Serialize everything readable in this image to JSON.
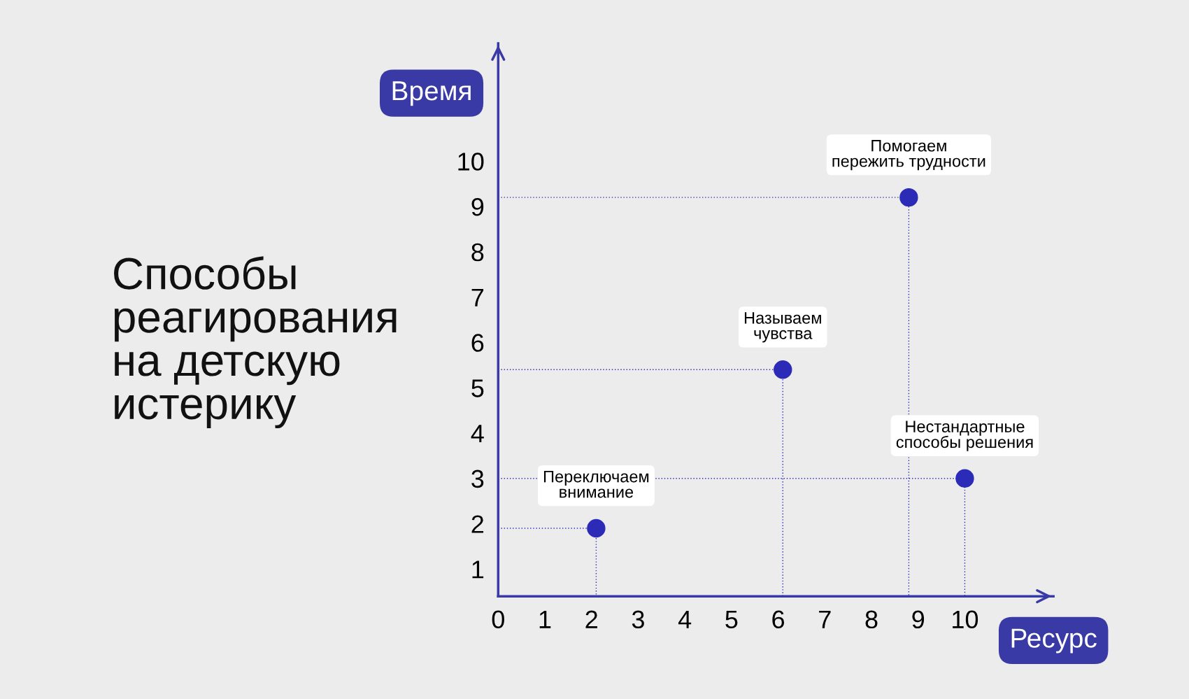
{
  "chart_data": {
    "type": "scatter",
    "title": "Способы\nреагирования\nна детскую\nистерику",
    "xlabel": "Ресурс",
    "ylabel": "Время",
    "x": [
      2.1,
      6.1,
      8.8,
      10
    ],
    "series": [
      {
        "color": "#2b2bb8",
        "marker": "circle",
        "values": [
          1.9,
          5.4,
          9.2,
          3.0
        ]
      },
      {
        "type": "line",
        "line_style": "dotted",
        "color": "#2b2bb8",
        "x": [
          0,
          2.1,
          2.1
        ],
        "values": [
          1.9,
          1.9,
          0.4
        ]
      },
      {
        "type": "line",
        "line_style": "dotted",
        "color": "#2b2bb8",
        "x": [
          0,
          6.1,
          6.1
        ],
        "values": [
          5.4,
          5.4,
          0.4
        ]
      },
      {
        "type": "line",
        "line_style": "dotted",
        "color": "#2b2bb8",
        "x": [
          0,
          8.8,
          8.8
        ],
        "values": [
          9.2,
          9.2,
          0.4
        ]
      },
      {
        "type": "line",
        "line_style": "dotted",
        "color": "#2b2bb8",
        "x": [
          0,
          10,
          10
        ],
        "values": [
          3.0,
          3.0,
          0.4
        ]
      }
    ],
    "xlim": [
      0,
      11.9
    ],
    "ylim": [
      0.4,
      12.6
    ],
    "xticks": [
      0,
      1,
      2,
      3,
      4,
      5,
      6,
      7,
      8,
      9,
      10
    ],
    "yticks": [
      1,
      2,
      3,
      4,
      5,
      6,
      7,
      8,
      9,
      10
    ],
    "marker": "none",
    "grid": false,
    "legend": false,
    "annotations": [
      {
        "text": "Переключаем\nвнимание",
        "x": 2.1,
        "y": 1.9
      },
      {
        "text": "Называем\nчувства",
        "x": 6.1,
        "y": 5.4
      },
      {
        "text": "Помогаем\nпережить трудности",
        "x": 8.8,
        "y": 9.2
      },
      {
        "text": "Нестандартные\nспособы решения",
        "x": 10,
        "y": 3.0
      }
    ]
  }
}
